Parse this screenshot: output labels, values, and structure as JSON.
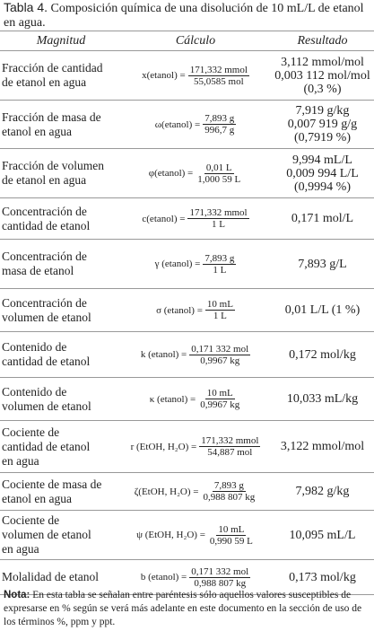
{
  "caption": {
    "label": "Tabla 4.",
    "text": "Composición química de una disolución de 10 mL/L de etanol en agua."
  },
  "table": {
    "headers": [
      "Magnitud",
      "Cálculo",
      "Resultado"
    ],
    "rows": [
      {
        "magnitude": [
          "Fracción de cantidad",
          "de etanol en agua"
        ],
        "calc": {
          "lhs": "x(etanol) =",
          "num": "171,332 mmol",
          "den": "55,0585 mol"
        },
        "result": [
          "3,112 mmol/mol",
          "0,003 112 mol/mol",
          "(0,3 %)"
        ]
      },
      {
        "magnitude": [
          "Fracción de masa de",
          "etanol en agua"
        ],
        "calc": {
          "lhs": "ω(etanol) =",
          "num": "7,893 g",
          "den": "996,7 g"
        },
        "result": [
          "7,919 g/kg",
          "0,007 919 g/g",
          "(0,7919 %)"
        ]
      },
      {
        "magnitude": [
          "Fracción de volumen",
          "de etanol en agua"
        ],
        "calc": {
          "lhs": "φ(etanol) =",
          "num": "0,01 L",
          "den": "1,000 59 L"
        },
        "result": [
          "9,994 mL/L",
          "0,009 994 L/L",
          "(0,9994 %)"
        ]
      },
      {
        "magnitude": [
          "Concentración de",
          "cantidad de etanol"
        ],
        "calc": {
          "lhs": "c(etanol) =",
          "num": "171,332 mmol",
          "den": "1 L"
        },
        "result": [
          "0,171 mol/L"
        ]
      },
      {
        "magnitude": [
          "Concentración de",
          "masa de etanol"
        ],
        "calc": {
          "lhs": "γ (etanol) =",
          "num": "7,893 g",
          "den": "1 L"
        },
        "result": [
          "7,893 g/L"
        ]
      },
      {
        "magnitude": [
          "Concentración de",
          "volumen de etanol"
        ],
        "calc": {
          "lhs": "σ (etanol) =",
          "num": "10 mL",
          "den": "1 L"
        },
        "result": [
          "0,01 L/L (1 %)"
        ]
      },
      {
        "magnitude": [
          "Contenido de",
          "cantidad de etanol"
        ],
        "calc": {
          "lhs": "k (etanol) =",
          "num": "0,171 332 mol",
          "den": "0,9967 kg"
        },
        "result": [
          "0,172 mol/kg"
        ]
      },
      {
        "magnitude": [
          "Contenido de",
          "volumen de etanol"
        ],
        "calc": {
          "lhs": "κ (etanol) =",
          "num": "10 mL",
          "den": "0,9967 kg"
        },
        "result": [
          "10,033 mL/kg"
        ]
      },
      {
        "magnitude": [
          "Cociente de",
          "cantidad de etanol",
          "en agua"
        ],
        "calc": {
          "lhs": "r (EtOH, H₂O) =",
          "num": "171,332 mmol",
          "den": "54,887 mol"
        },
        "result": [
          "3,122 mmol/mol"
        ]
      },
      {
        "magnitude": [
          "Cociente de masa de",
          "etanol en agua"
        ],
        "calc": {
          "lhs": "ζ(EtOH, H₂O) =",
          "num": "7,893 g",
          "den": "0,988 807 kg"
        },
        "result": [
          "7,982 g/kg"
        ]
      },
      {
        "magnitude": [
          "Cociente de",
          "volumen de etanol",
          "en agua"
        ],
        "calc": {
          "lhs": "ψ (EtOH, H₂O) =",
          "num": "10 mL",
          "den": "0,990 59 L"
        },
        "result": [
          "10,095 mL/L"
        ]
      },
      {
        "magnitude": [
          "Molalidad de etanol"
        ],
        "calc": {
          "lhs": "b (etanol) =",
          "num": "0,171 332 mol",
          "den": "0,988 807 kg"
        },
        "result": [
          "0,173 mol/kg"
        ]
      }
    ]
  },
  "note": {
    "label": "Nota:",
    "text": "En esta tabla se señalan entre paréntesis sólo aquellos valores susceptibles de expresarse en % según se verá más adelante en este documento en la sección de uso de los términos %, ppm y ppt."
  }
}
